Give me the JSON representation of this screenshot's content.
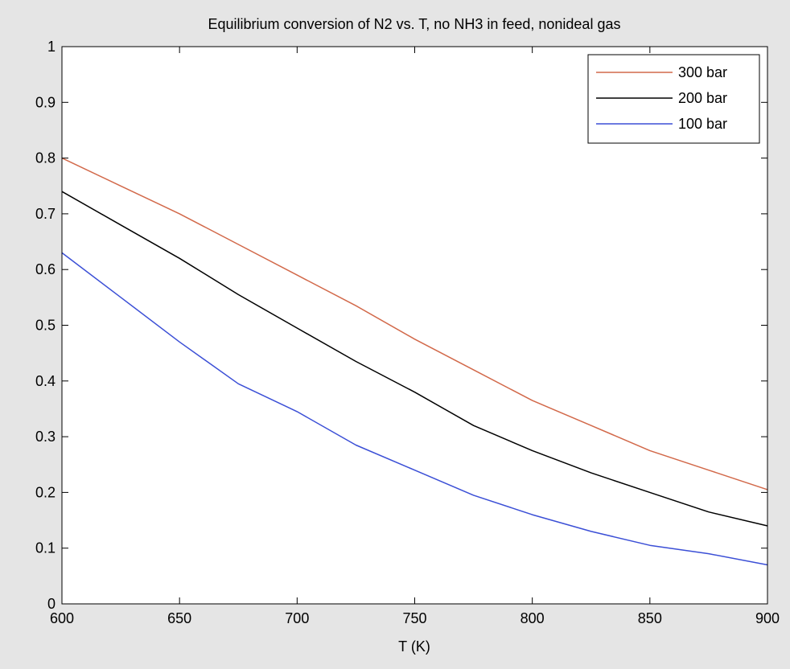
{
  "chart_data": {
    "type": "line",
    "title": "Equilibrium conversion of N2 vs. T, no NH3 in feed, nonideal gas",
    "xlabel": "T (K)",
    "ylabel": "",
    "xlim": [
      600,
      900
    ],
    "ylim": [
      0,
      1
    ],
    "xticks": [
      600,
      650,
      700,
      750,
      800,
      850,
      900
    ],
    "yticks": [
      0,
      0.1,
      0.2,
      0.3,
      0.4,
      0.5,
      0.6,
      0.7,
      0.8,
      0.9,
      1
    ],
    "ytick_labels": [
      "0",
      "0.1",
      "0.2",
      "0.3",
      "0.4",
      "0.5",
      "0.6",
      "0.7",
      "0.8",
      "0.9",
      "1"
    ],
    "grid": false,
    "legend_position": "top-right",
    "x": [
      600,
      625,
      650,
      675,
      700,
      725,
      750,
      775,
      800,
      825,
      850,
      875,
      900
    ],
    "series": [
      {
        "name": "300 bar",
        "color": "#d2694a",
        "values": [
          0.8,
          0.75,
          0.7,
          0.645,
          0.59,
          0.535,
          0.475,
          0.42,
          0.365,
          0.32,
          0.275,
          0.24,
          0.205
        ]
      },
      {
        "name": "200 bar",
        "color": "#000000",
        "values": [
          0.74,
          0.68,
          0.62,
          0.555,
          0.495,
          0.435,
          0.38,
          0.32,
          0.275,
          0.235,
          0.2,
          0.165,
          0.14
        ]
      },
      {
        "name": "100 bar",
        "color": "#3b4fd6",
        "values": [
          0.63,
          0.55,
          0.47,
          0.395,
          0.345,
          0.285,
          0.24,
          0.195,
          0.16,
          0.13,
          0.105,
          0.09,
          0.07
        ]
      }
    ]
  }
}
